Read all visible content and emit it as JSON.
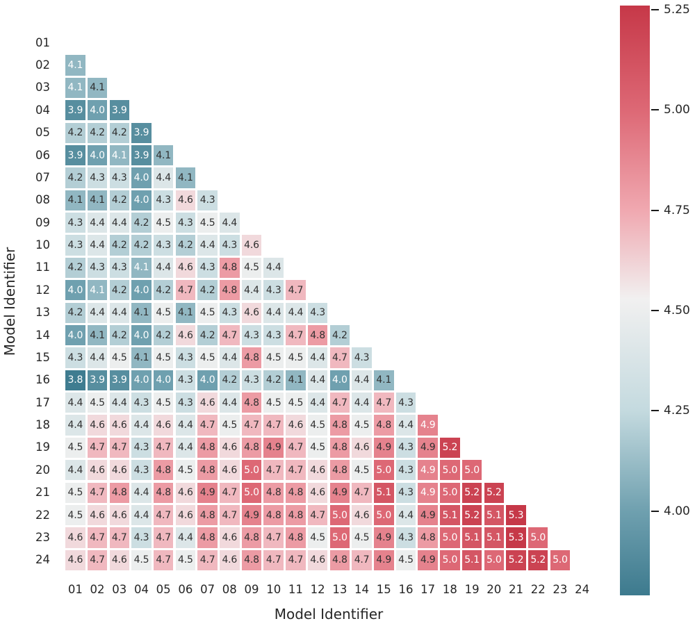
{
  "figure": {
    "background": "#ffffff",
    "x_axis_title": "Model Identifier",
    "y_axis_title": "Model Identifier"
  },
  "chart_data": {
    "type": "heatmap",
    "title": "",
    "xlabel": "Model Identifier",
    "ylabel": "Model Identifier",
    "categories": [
      "01",
      "02",
      "03",
      "04",
      "05",
      "06",
      "07",
      "08",
      "09",
      "10",
      "11",
      "12",
      "13",
      "14",
      "15",
      "16",
      "17",
      "18",
      "19",
      "20",
      "21",
      "22",
      "23",
      "24"
    ],
    "matrix_description": "Lower-triangular pairwise matrix; rows[i].values are cell annotations for columns 01..(i-1)",
    "rows": [
      {
        "row": "01",
        "values": []
      },
      {
        "row": "02",
        "values": [
          "4.1"
        ]
      },
      {
        "row": "03",
        "values": [
          "4.1",
          "4.1"
        ]
      },
      {
        "row": "04",
        "values": [
          "3.9",
          "4.0",
          "3.9"
        ]
      },
      {
        "row": "05",
        "values": [
          "4.2",
          "4.2",
          "4.2",
          "3.9"
        ]
      },
      {
        "row": "06",
        "values": [
          "3.9",
          "4.0",
          "4.1",
          "3.9",
          "4.1"
        ]
      },
      {
        "row": "07",
        "values": [
          "4.2",
          "4.3",
          "4.3",
          "4.0",
          "4.4",
          "4.1"
        ]
      },
      {
        "row": "08",
        "values": [
          "4.1",
          "4.1",
          "4.2",
          "4.0",
          "4.3",
          "4.6",
          "4.3"
        ]
      },
      {
        "row": "09",
        "values": [
          "4.3",
          "4.4",
          "4.4",
          "4.2",
          "4.5",
          "4.3",
          "4.5",
          "4.4"
        ]
      },
      {
        "row": "10",
        "values": [
          "4.3",
          "4.4",
          "4.2",
          "4.2",
          "4.3",
          "4.2",
          "4.4",
          "4.3",
          "4.6"
        ]
      },
      {
        "row": "11",
        "values": [
          "4.2",
          "4.3",
          "4.3",
          "4.1",
          "4.4",
          "4.6",
          "4.3",
          "4.8",
          "4.5",
          "4.4"
        ]
      },
      {
        "row": "12",
        "values": [
          "4.0",
          "4.1",
          "4.2",
          "4.0",
          "4.2",
          "4.7",
          "4.2",
          "4.8",
          "4.4",
          "4.3",
          "4.7"
        ]
      },
      {
        "row": "13",
        "values": [
          "4.2",
          "4.4",
          "4.4",
          "4.1",
          "4.5",
          "4.1",
          "4.5",
          "4.3",
          "4.6",
          "4.4",
          "4.4",
          "4.3"
        ]
      },
      {
        "row": "14",
        "values": [
          "4.0",
          "4.1",
          "4.2",
          "4.0",
          "4.2",
          "4.6",
          "4.2",
          "4.7",
          "4.3",
          "4.3",
          "4.7",
          "4.8",
          "4.2"
        ]
      },
      {
        "row": "15",
        "values": [
          "4.3",
          "4.4",
          "4.5",
          "4.1",
          "4.5",
          "4.3",
          "4.5",
          "4.4",
          "4.8",
          "4.5",
          "4.5",
          "4.4",
          "4.7",
          "4.3"
        ]
      },
      {
        "row": "16",
        "values": [
          "3.8",
          "3.9",
          "3.9",
          "4.0",
          "4.0",
          "4.3",
          "4.0",
          "4.2",
          "4.3",
          "4.2",
          "4.1",
          "4.4",
          "4.0",
          "4.4",
          "4.1"
        ]
      },
      {
        "row": "17",
        "values": [
          "4.4",
          "4.5",
          "4.4",
          "4.3",
          "4.5",
          "4.3",
          "4.6",
          "4.4",
          "4.8",
          "4.5",
          "4.5",
          "4.4",
          "4.7",
          "4.4",
          "4.7",
          "4.3"
        ]
      },
      {
        "row": "18",
        "values": [
          "4.4",
          "4.6",
          "4.6",
          "4.4",
          "4.6",
          "4.4",
          "4.7",
          "4.5",
          "4.7",
          "4.7",
          "4.6",
          "4.5",
          "4.8",
          "4.5",
          "4.8",
          "4.4",
          "4.9"
        ]
      },
      {
        "row": "19",
        "values": [
          "4.5",
          "4.7",
          "4.7",
          "4.3",
          "4.7",
          "4.4",
          "4.8",
          "4.6",
          "4.8",
          "4.9",
          "4.7",
          "4.5",
          "4.8",
          "4.6",
          "4.9",
          "4.3",
          "4.9",
          "5.2"
        ]
      },
      {
        "row": "20",
        "values": [
          "4.4",
          "4.6",
          "4.6",
          "4.3",
          "4.8",
          "4.5",
          "4.8",
          "4.6",
          "5.0",
          "4.7",
          "4.7",
          "4.6",
          "4.8",
          "4.5",
          "5.0",
          "4.3",
          "4.9",
          "5.0",
          "5.0"
        ]
      },
      {
        "row": "21",
        "values": [
          "4.5",
          "4.7",
          "4.8",
          "4.4",
          "4.8",
          "4.6",
          "4.9",
          "4.7",
          "5.0",
          "4.8",
          "4.8",
          "4.6",
          "4.9",
          "4.7",
          "5.1",
          "4.3",
          "4.9",
          "5.0",
          "5.2",
          "5.2"
        ]
      },
      {
        "row": "22",
        "values": [
          "4.5",
          "4.6",
          "4.6",
          "4.4",
          "4.7",
          "4.6",
          "4.8",
          "4.7",
          "4.9",
          "4.8",
          "4.8",
          "4.7",
          "5.0",
          "4.6",
          "5.0",
          "4.4",
          "4.9",
          "5.1",
          "5.2",
          "5.1",
          "5.3"
        ]
      },
      {
        "row": "23",
        "values": [
          "4.6",
          "4.7",
          "4.7",
          "4.3",
          "4.7",
          "4.4",
          "4.8",
          "4.6",
          "4.8",
          "4.7",
          "4.8",
          "4.5",
          "5.0",
          "4.5",
          "4.9",
          "4.3",
          "4.8",
          "5.0",
          "5.1",
          "5.1",
          "5.3",
          "5.0"
        ]
      },
      {
        "row": "24",
        "values": [
          "4.6",
          "4.7",
          "4.6",
          "4.5",
          "4.7",
          "4.5",
          "4.7",
          "4.6",
          "4.8",
          "4.7",
          "4.7",
          "4.6",
          "4.8",
          "4.7",
          "4.9",
          "4.5",
          "4.9",
          "5.0",
          "5.1",
          "5.0",
          "5.2",
          "5.2",
          "5.0"
        ]
      }
    ],
    "white_text_cells": [
      "02-01",
      "03-01",
      "04-01",
      "04-02",
      "04-03",
      "05-04",
      "06-01",
      "06-02",
      "06-03",
      "06-04",
      "07-04",
      "08-04",
      "11-04",
      "12-01",
      "12-02",
      "12-04",
      "14-01",
      "14-04",
      "16-01",
      "16-02",
      "16-03",
      "16-04",
      "16-05",
      "16-07",
      "16-13",
      "18-17",
      "19-18",
      "20-09",
      "20-15",
      "20-17",
      "20-18",
      "20-19",
      "21-09",
      "21-15",
      "21-17",
      "21-18",
      "21-19",
      "21-20",
      "22-13",
      "22-15",
      "22-18",
      "22-19",
      "22-20",
      "22-21",
      "23-13",
      "23-18",
      "23-19",
      "23-20",
      "23-21",
      "23-22",
      "24-18",
      "24-19",
      "24-20",
      "24-21",
      "24-22",
      "24-23"
    ]
  },
  "colorbar": {
    "vmin": 3.79,
    "vmax": 5.26,
    "tick_labels": [
      "5.25",
      "5.00",
      "4.75",
      "4.50",
      "4.25",
      "4.00"
    ],
    "tick_values": [
      5.25,
      5.0,
      4.75,
      4.5,
      4.25,
      4.0
    ],
    "colormap_stops": [
      {
        "value": 3.79,
        "color": "#3D7A8E"
      },
      {
        "value": 4.0,
        "color": "#6FA0AF"
      },
      {
        "value": 4.25,
        "color": "#C4DADF"
      },
      {
        "value": 4.53,
        "color": "#F1F0F0"
      },
      {
        "value": 4.75,
        "color": "#F0A8B0"
      },
      {
        "value": 5.0,
        "color": "#DD6875"
      },
      {
        "value": 5.26,
        "color": "#C63848"
      }
    ]
  },
  "text_colors": {
    "cell_dark": "#2f2f2f",
    "cell_light": "#ffffff",
    "tick": "#262626"
  }
}
